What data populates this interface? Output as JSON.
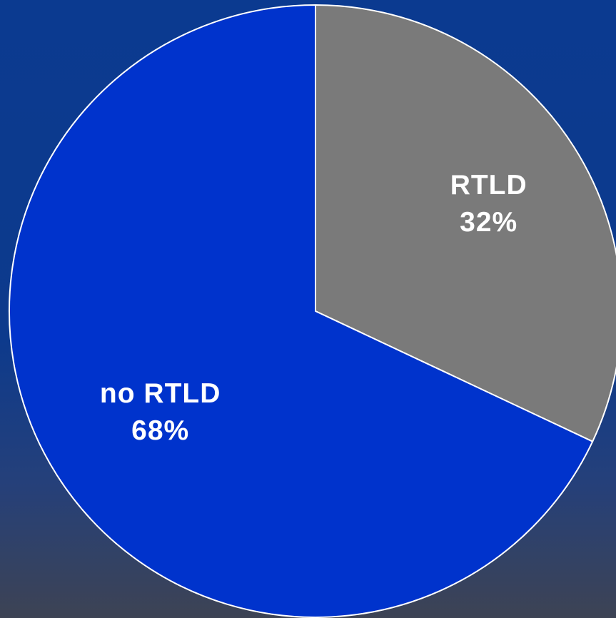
{
  "chart_data": {
    "type": "pie",
    "title": "",
    "slices": [
      {
        "name": "RTLD",
        "value": 32,
        "value_label": "32%",
        "color": "#7a7a7a"
      },
      {
        "name": "no RTLD",
        "value": 68,
        "value_label": "68%",
        "color": "#0033cc"
      }
    ],
    "start_angle": "12 o'clock",
    "direction": "clockwise",
    "slice_border_color": "#ffffff",
    "legend": "none",
    "labels_inside_slices": true
  }
}
